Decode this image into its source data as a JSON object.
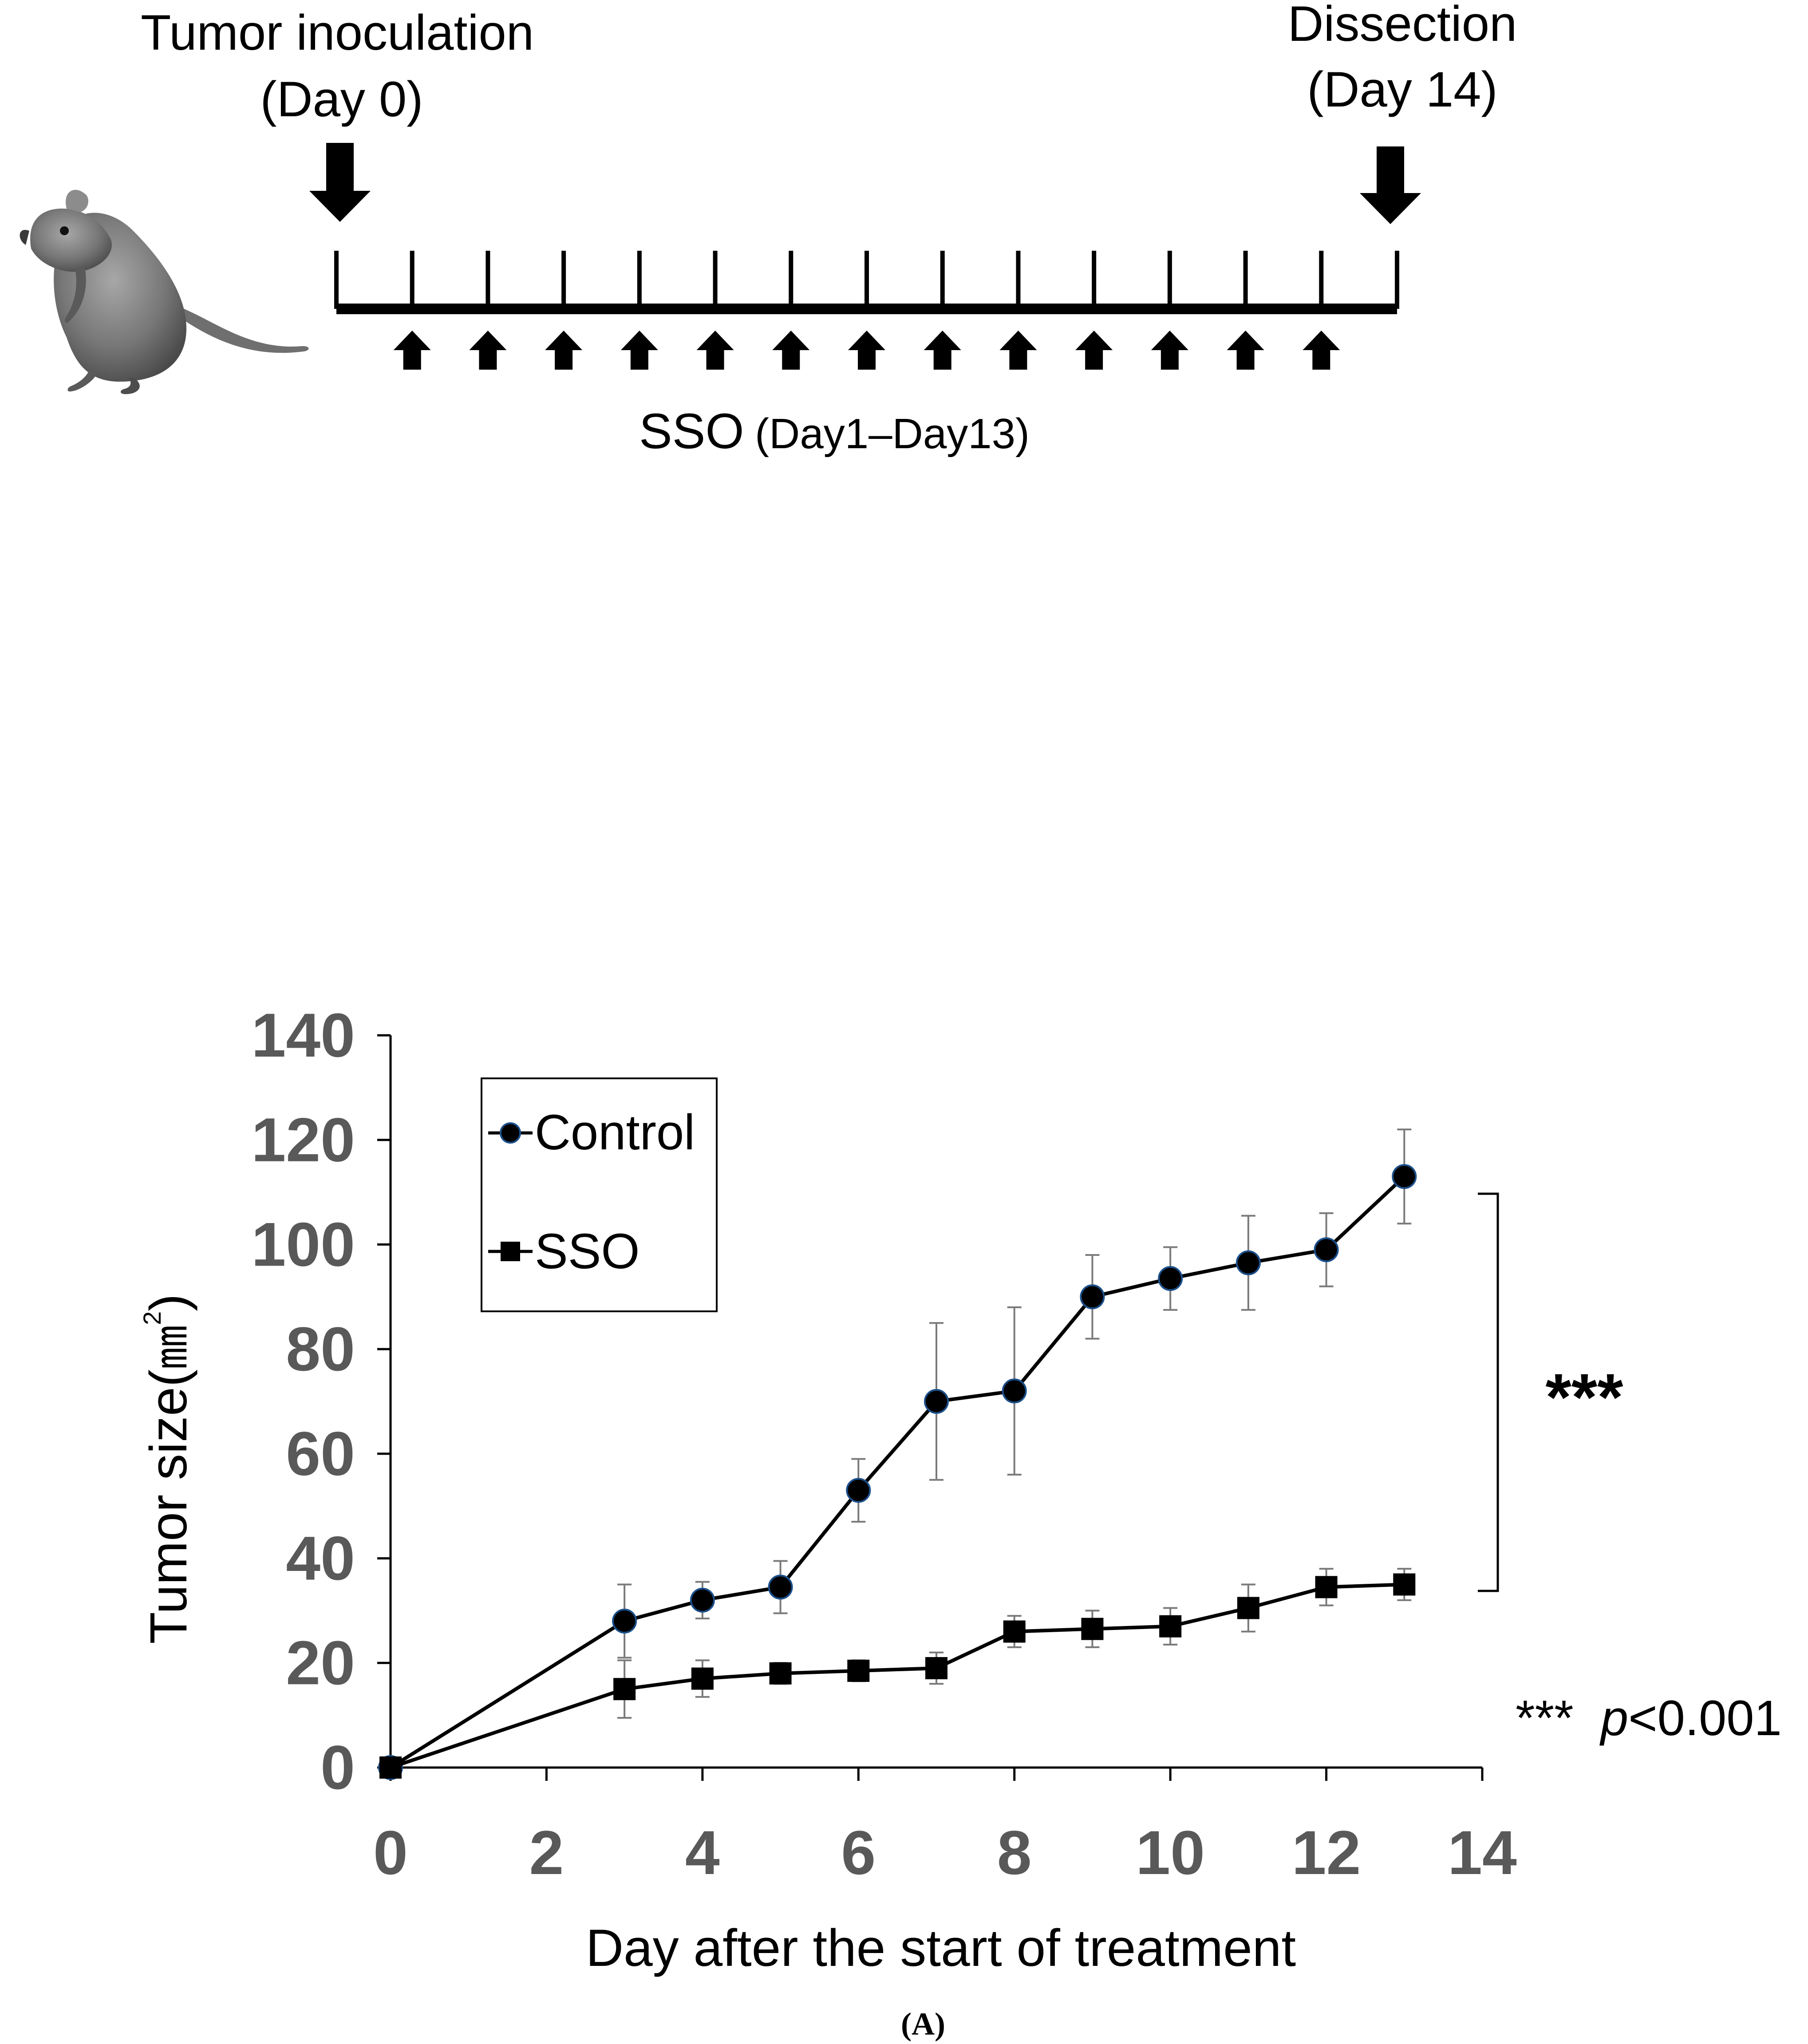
{
  "schema": {
    "start_label": "Tumor inoculation",
    "start_day": "(Day 0)",
    "end_label": "Dissection",
    "end_day": "(Day 14)",
    "treatment_name": "SSO",
    "treatment_days": "(Day1–Day13)",
    "treatment_count": 13,
    "mouse_icon": "mouse-icon"
  },
  "chart_data": {
    "type": "line",
    "title": "",
    "xlabel": "Day after the start of treatment",
    "ylabel_main": "Tumor size(",
    "ylabel_unit": "㎜",
    "ylabel_sup": "2",
    "ylabel_close": ")",
    "xlim": [
      0,
      14
    ],
    "ylim": [
      0,
      140
    ],
    "xticks": [
      0,
      2,
      4,
      6,
      8,
      10,
      12,
      14
    ],
    "yticks": [
      0,
      20,
      40,
      60,
      80,
      100,
      120,
      140
    ],
    "grid": false,
    "legend_position": "top-left",
    "series": [
      {
        "name": "Control",
        "marker": "circle",
        "x": [
          0,
          3,
          4,
          5,
          6,
          7,
          8,
          9,
          10,
          11,
          12,
          13
        ],
        "y": [
          0,
          28,
          32,
          34.5,
          53,
          70,
          72,
          90,
          93.5,
          96.5,
          99,
          113
        ],
        "err": [
          0,
          7,
          3.5,
          5,
          6,
          15,
          16,
          8,
          6,
          9,
          7,
          9
        ]
      },
      {
        "name": "SSO",
        "marker": "square",
        "x": [
          0,
          3,
          4,
          5,
          6,
          7,
          8,
          9,
          10,
          11,
          12,
          13
        ],
        "y": [
          0,
          15,
          17,
          18,
          18.5,
          19,
          26,
          26.5,
          27,
          30.5,
          34.5,
          35
        ],
        "err": [
          0,
          5.5,
          3.5,
          2,
          2,
          3,
          3,
          3.5,
          3.5,
          4.5,
          3.5,
          3
        ]
      }
    ],
    "significance_label": "***",
    "p_note_stars": "***",
    "p_note_p": "p",
    "p_note_value": "<0.001"
  },
  "panel_label": "(A)"
}
